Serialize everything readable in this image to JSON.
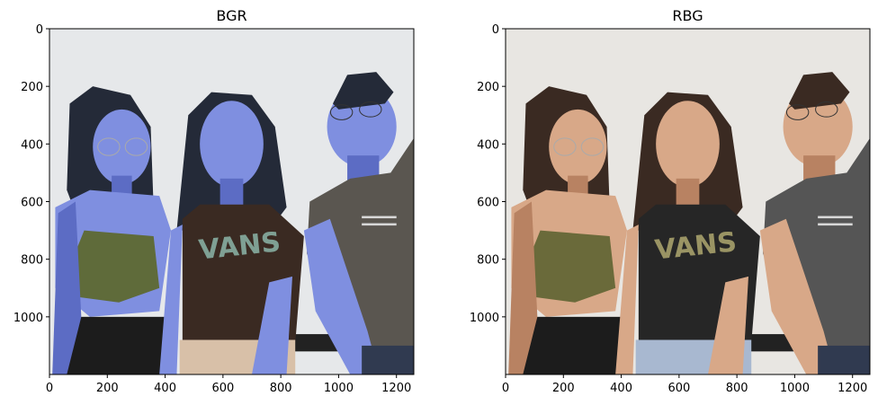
{
  "figure": {
    "panels": [
      {
        "title": "BGR",
        "image_description": "photo of three people with red and blue channels swapped (blue-tinted skin)",
        "colors": {
          "background": "#e6e8ea",
          "skin": "#7f8fe0",
          "skin_shadow": "#5c6cc4",
          "hair": "#242a38",
          "top": "#5f6b3a",
          "shirt": "#3a2a22",
          "shirt_right": "#5a5650",
          "pants": "#d8c0a8",
          "vans_logo": "#7fa094"
        }
      },
      {
        "title": "RBG",
        "image_description": "same photo with natural colors",
        "colors": {
          "background": "#e8e6e2",
          "skin": "#d8a888",
          "skin_shadow": "#b88262",
          "hair": "#3a2a22",
          "top": "#6a6a3a",
          "shirt": "#262626",
          "shirt_right": "#555555",
          "pants": "#a8b8d0",
          "vans_logo": "#9a9464"
        }
      }
    ]
  },
  "chart_data": [
    {
      "type": "image",
      "title": "BGR",
      "xticks": [
        0,
        200,
        400,
        600,
        800,
        1000,
        1200
      ],
      "yticks": [
        0,
        200,
        400,
        600,
        800,
        1000
      ],
      "xlim": [
        0,
        1260
      ],
      "ylim": [
        1200,
        0
      ]
    },
    {
      "type": "image",
      "title": "RBG",
      "xticks": [
        0,
        200,
        400,
        600,
        800,
        1000,
        1200
      ],
      "yticks": [
        0,
        200,
        400,
        600,
        800,
        1000
      ],
      "xlim": [
        0,
        1260
      ],
      "ylim": [
        1200,
        0
      ]
    }
  ]
}
